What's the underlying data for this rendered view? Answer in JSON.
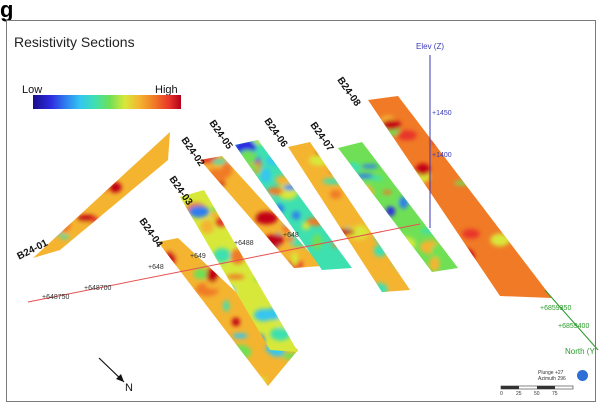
{
  "header_stub": "g",
  "title": "Resistivity Sections",
  "legend": {
    "low": "Low",
    "high": "High"
  },
  "sections": [
    "B24-01",
    "B24-02",
    "B24-03",
    "B24-04",
    "B24-05",
    "B24-06",
    "B24-07",
    "B24-08"
  ],
  "east_ticks": [
    "+648750",
    "+648700",
    "+648",
    "+649",
    "+6488",
    "+648"
  ],
  "elevation": {
    "label": "Elev (Z)",
    "ticks": [
      "+1450",
      "+1400"
    ]
  },
  "north_ticks": [
    "+6859350",
    "+6859400"
  ],
  "north_axis_label": "North (Y",
  "north_arrow_label": "N",
  "view_info": [
    "Plunge +27",
    "Azimuth 296"
  ],
  "scale_labels": [
    "0",
    "25",
    "50",
    "75"
  ],
  "colors": {
    "east_axis": "#e65050",
    "elev_axis": "#3a3ab8",
    "north_axis": "#2a9a2a"
  }
}
